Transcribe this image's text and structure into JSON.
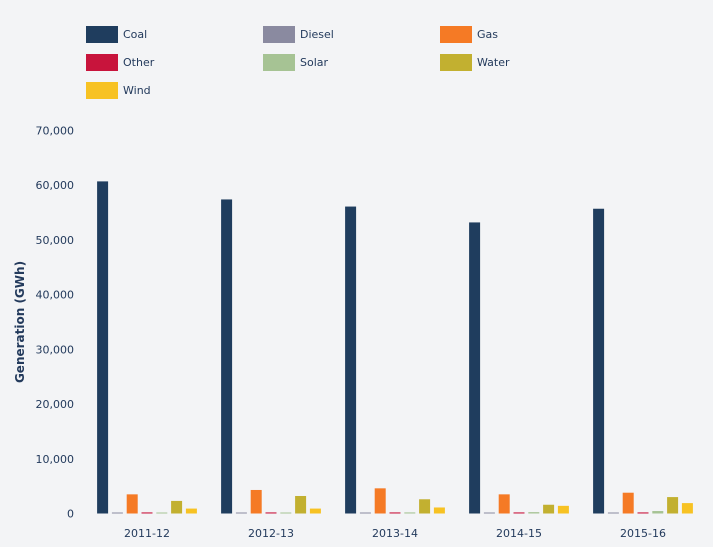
{
  "chart_data": {
    "type": "bar",
    "title": "",
    "xlabel": "",
    "ylabel": "Generation (GWh)",
    "ylim": [
      0,
      70000
    ],
    "yticks": [
      0,
      10000,
      20000,
      30000,
      40000,
      50000,
      60000,
      70000
    ],
    "ytick_labels": [
      "0",
      "10,000",
      "20,000",
      "30,000",
      "40,000",
      "50,000",
      "60,000",
      "70,000"
    ],
    "grid": false,
    "legend_position": "top-left",
    "categories": [
      "2011-12",
      "2012-13",
      "2013-14",
      "2014-15",
      "2015-16"
    ],
    "series": [
      {
        "name": "Coal",
        "color": "#1f3d5e",
        "values": [
          60700,
          57400,
          56100,
          53200,
          55700
        ]
      },
      {
        "name": "Diesel",
        "color": "#8a8aa0",
        "values": [
          150,
          150,
          150,
          150,
          150
        ]
      },
      {
        "name": "Gas",
        "color": "#f57a25",
        "values": [
          3500,
          4300,
          4600,
          3500,
          3800
        ]
      },
      {
        "name": "Other",
        "color": "#c8143c",
        "values": [
          200,
          200,
          200,
          200,
          200
        ]
      },
      {
        "name": "Solar",
        "color": "#a6c394",
        "values": [
          100,
          150,
          200,
          250,
          450
        ]
      },
      {
        "name": "Water",
        "color": "#c2b030",
        "values": [
          2300,
          3200,
          2600,
          1600,
          3000
        ]
      },
      {
        "name": "Wind",
        "color": "#f7c223",
        "values": [
          900,
          900,
          1100,
          1400,
          1900
        ]
      }
    ]
  }
}
